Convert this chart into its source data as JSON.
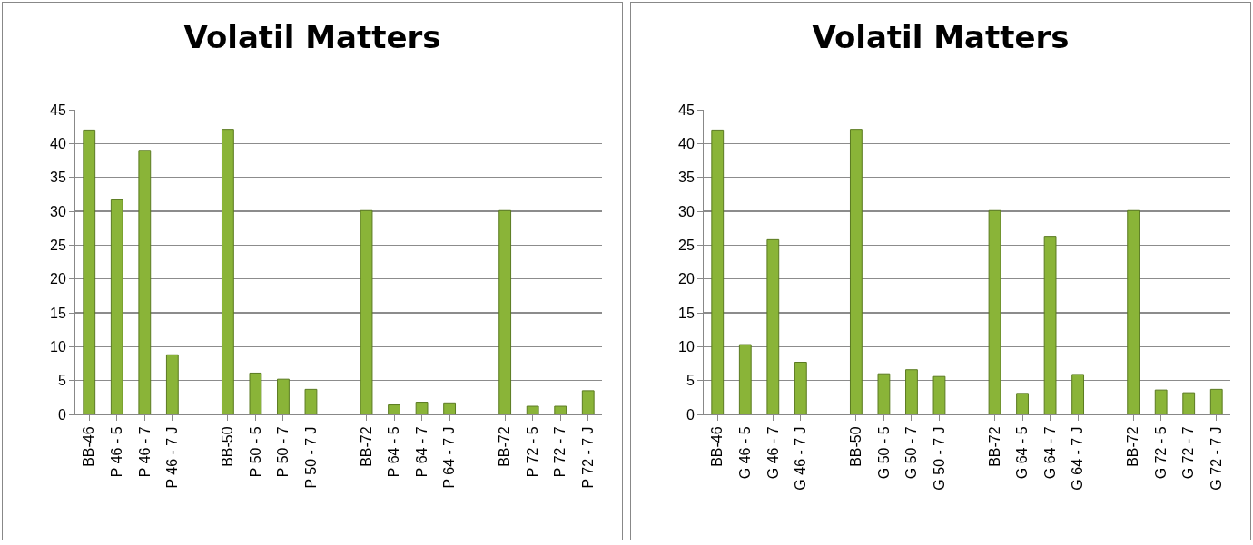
{
  "chart_data": [
    {
      "type": "bar",
      "title": "Volatil Matters",
      "categories": [
        "BB-46",
        "P 46 - 5",
        "P 46 - 7",
        "P 46 - 7 J",
        null,
        "BB-50",
        "P 50 - 5",
        "P 50 - 7",
        "P 50 - 7 J",
        null,
        "BB-72",
        "P 64 - 5",
        "P 64 - 7",
        "P 64 - 7 J",
        null,
        "BB-72",
        "P 72 - 5",
        "P 72 - 7",
        "P 72 - 7 J"
      ],
      "values": [
        42,
        31.8,
        39,
        8.8,
        null,
        42.1,
        6.1,
        5.2,
        3.7,
        null,
        30.1,
        1.4,
        1.8,
        1.7,
        null,
        30.1,
        1.2,
        1.2,
        3.5
      ],
      "color": "#8ab438",
      "ylim": [
        0,
        45
      ],
      "yticks": [
        0,
        5,
        10,
        15,
        20,
        25,
        30,
        35,
        40,
        45
      ],
      "grid": "y"
    },
    {
      "type": "bar",
      "title": "Volatil Matters",
      "categories": [
        "BB-46",
        "G 46 - 5",
        "G 46 - 7",
        "G 46 - 7 J",
        null,
        "BB-50",
        "G 50 - 5",
        "G 50 - 7",
        "G 50 - 7 J",
        null,
        "BB-72",
        "G 64 - 5",
        "G 64 - 7",
        "G 64 - 7 J",
        null,
        "BB-72",
        "G 72 - 5",
        "G 72 - 7",
        "G 72 - 7 J"
      ],
      "values": [
        42,
        10.3,
        25.8,
        7.7,
        null,
        42.1,
        6.0,
        6.6,
        5.6,
        null,
        30.1,
        3.1,
        26.3,
        5.9,
        null,
        30.1,
        3.6,
        3.2,
        3.7
      ],
      "color": "#8ab438",
      "ylim": [
        0,
        45
      ],
      "yticks": [
        0,
        5,
        10,
        15,
        20,
        25,
        30,
        35,
        40,
        45
      ],
      "grid": "y"
    }
  ]
}
